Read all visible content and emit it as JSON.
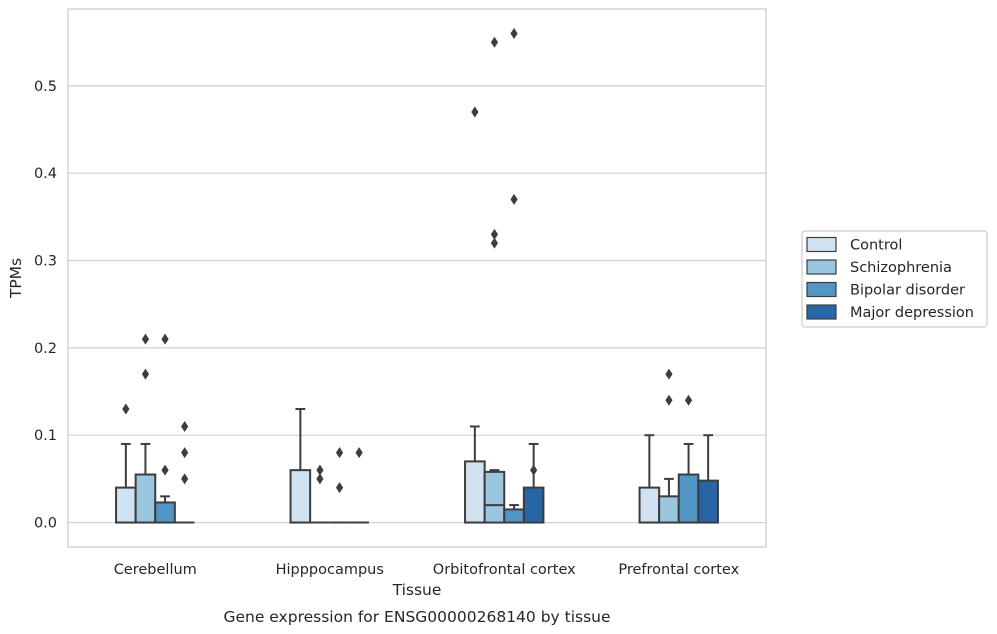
{
  "caption": "Gene expression for ENSG00000268140 by tissue",
  "chart_data": {
    "type": "boxplot",
    "xlabel": "Tissue",
    "ylabel": "TPMs",
    "categories": [
      "Cerebellum",
      "Hipppocampus",
      "Orbitofrontal cortex",
      "Prefrontal cortex"
    ],
    "ylim": [
      -0.028,
      0.588
    ],
    "yticks": [
      0.0,
      0.1,
      0.2,
      0.3,
      0.4,
      0.5
    ],
    "ytick_labels": [
      "0.0",
      "0.1",
      "0.2",
      "0.3",
      "0.4",
      "0.5"
    ],
    "grid": "horizontal",
    "legend_position": "right",
    "series": [
      {
        "name": "Control",
        "color": "#d1e2f2",
        "boxes": [
          {
            "whislo": 0.0,
            "q1": 0.0,
            "med": 0.0,
            "q3": 0.04,
            "whishi": 0.09,
            "fliers": [
              0.13
            ]
          },
          {
            "whislo": 0.0,
            "q1": 0.0,
            "med": 0.0,
            "q3": 0.06,
            "whishi": 0.13,
            "fliers": []
          },
          {
            "whislo": 0.0,
            "q1": 0.0,
            "med": 0.0,
            "q3": 0.07,
            "whishi": 0.11,
            "fliers": [
              0.47
            ]
          },
          {
            "whislo": 0.0,
            "q1": 0.0,
            "med": 0.0,
            "q3": 0.04,
            "whishi": 0.1,
            "fliers": []
          }
        ]
      },
      {
        "name": "Schizophrenia",
        "color": "#9ac6e0",
        "boxes": [
          {
            "whislo": 0.0,
            "q1": 0.0,
            "med": 0.0,
            "q3": 0.055,
            "whishi": 0.09,
            "fliers": [
              0.17,
              0.21
            ]
          },
          {
            "whislo": 0.0,
            "q1": 0.0,
            "med": 0.0,
            "q3": 0.0,
            "whishi": 0.0,
            "fliers": [
              0.05,
              0.06
            ]
          },
          {
            "whislo": 0.0,
            "q1": 0.0,
            "med": 0.02,
            "q3": 0.058,
            "whishi": 0.06,
            "fliers": [
              0.32,
              0.33,
              0.55
            ]
          },
          {
            "whislo": 0.0,
            "q1": 0.0,
            "med": 0.0,
            "q3": 0.03,
            "whishi": 0.05,
            "fliers": [
              0.14,
              0.17
            ]
          }
        ]
      },
      {
        "name": "Bipolar disorder",
        "color": "#5296c5",
        "boxes": [
          {
            "whislo": 0.0,
            "q1": 0.0,
            "med": 0.0,
            "q3": 0.023,
            "whishi": 0.03,
            "fliers": [
              0.06,
              0.21
            ]
          },
          {
            "whislo": 0.0,
            "q1": 0.0,
            "med": 0.0,
            "q3": 0.0,
            "whishi": 0.0,
            "fliers": [
              0.04,
              0.08
            ]
          },
          {
            "whislo": 0.0,
            "q1": 0.0,
            "med": 0.0,
            "q3": 0.015,
            "whishi": 0.02,
            "fliers": [
              0.37,
              0.56
            ]
          },
          {
            "whislo": 0.0,
            "q1": 0.0,
            "med": 0.0,
            "q3": 0.055,
            "whishi": 0.09,
            "fliers": [
              0.14
            ]
          }
        ]
      },
      {
        "name": "Major depression",
        "color": "#2765a6",
        "boxes": [
          {
            "whislo": 0.0,
            "q1": 0.0,
            "med": 0.0,
            "q3": 0.0,
            "whishi": 0.0,
            "fliers": [
              0.05,
              0.08,
              0.11
            ]
          },
          {
            "whislo": 0.0,
            "q1": 0.0,
            "med": 0.0,
            "q3": 0.0,
            "whishi": 0.0,
            "fliers": [
              0.08
            ]
          },
          {
            "whislo": 0.0,
            "q1": 0.0,
            "med": 0.0,
            "q3": 0.04,
            "whishi": 0.09,
            "fliers": [
              0.06
            ]
          },
          {
            "whislo": 0.0,
            "q1": 0.0,
            "med": 0.0,
            "q3": 0.048,
            "whishi": 0.1,
            "fliers": []
          }
        ]
      }
    ]
  }
}
